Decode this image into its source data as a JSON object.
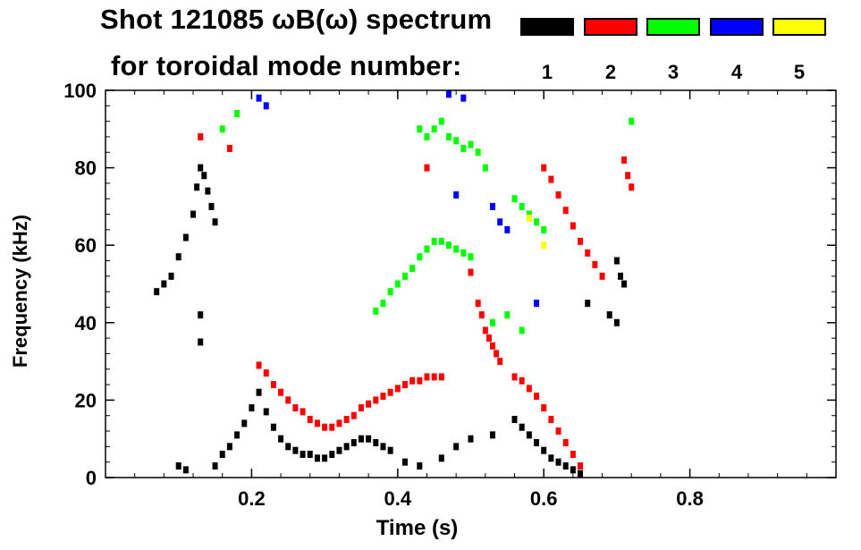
{
  "chart_data": {
    "type": "scatter",
    "title": "Shot 121085 ωB(ω) spectrum",
    "subtitle": "for toroidal mode number:",
    "xlabel": "Time (s)",
    "ylabel": "Frequency (kHz)",
    "xlim": [
      0.0,
      1.0
    ],
    "ylim": [
      0,
      100
    ],
    "xticks": [
      0.2,
      0.4,
      0.6,
      0.8
    ],
    "xtick_labels": [
      "0.2",
      "0.4",
      "0.6",
      "0.8"
    ],
    "yticks": [
      0,
      20,
      40,
      60,
      80,
      100
    ],
    "ytick_labels": [
      "0",
      "20",
      "40",
      "60",
      "80",
      "100"
    ],
    "legend": [
      {
        "label": "1",
        "color": "#000000"
      },
      {
        "label": "2",
        "color": "#ff0000"
      },
      {
        "label": "3",
        "color": "#00ff00"
      },
      {
        "label": "4",
        "color": "#0000ff"
      },
      {
        "label": "5",
        "color": "#ffff00"
      }
    ],
    "series": [
      {
        "name": "n=1",
        "color": "#000000",
        "points": [
          [
            0.07,
            48
          ],
          [
            0.08,
            50
          ],
          [
            0.09,
            52
          ],
          [
            0.1,
            57
          ],
          [
            0.11,
            62
          ],
          [
            0.12,
            68
          ],
          [
            0.125,
            75
          ],
          [
            0.13,
            80
          ],
          [
            0.135,
            78
          ],
          [
            0.14,
            74
          ],
          [
            0.145,
            70
          ],
          [
            0.15,
            66
          ],
          [
            0.13,
            42
          ],
          [
            0.13,
            35
          ],
          [
            0.1,
            3
          ],
          [
            0.11,
            2
          ],
          [
            0.15,
            3
          ],
          [
            0.16,
            6
          ],
          [
            0.17,
            8
          ],
          [
            0.18,
            11
          ],
          [
            0.19,
            14
          ],
          [
            0.2,
            18
          ],
          [
            0.21,
            22
          ],
          [
            0.22,
            17
          ],
          [
            0.23,
            13
          ],
          [
            0.24,
            10
          ],
          [
            0.25,
            8
          ],
          [
            0.26,
            7
          ],
          [
            0.27,
            6
          ],
          [
            0.28,
            6
          ],
          [
            0.29,
            5
          ],
          [
            0.3,
            5
          ],
          [
            0.31,
            6
          ],
          [
            0.32,
            7
          ],
          [
            0.33,
            8
          ],
          [
            0.34,
            9
          ],
          [
            0.35,
            10
          ],
          [
            0.36,
            10
          ],
          [
            0.37,
            9
          ],
          [
            0.38,
            8
          ],
          [
            0.39,
            7
          ],
          [
            0.41,
            4
          ],
          [
            0.43,
            3
          ],
          [
            0.46,
            5
          ],
          [
            0.48,
            8
          ],
          [
            0.5,
            10
          ],
          [
            0.53,
            11
          ],
          [
            0.56,
            15
          ],
          [
            0.57,
            13
          ],
          [
            0.58,
            11
          ],
          [
            0.59,
            9
          ],
          [
            0.6,
            7
          ],
          [
            0.61,
            5
          ],
          [
            0.62,
            4
          ],
          [
            0.63,
            3
          ],
          [
            0.64,
            2
          ],
          [
            0.65,
            1
          ],
          [
            0.7,
            56
          ],
          [
            0.705,
            52
          ],
          [
            0.71,
            50
          ],
          [
            0.69,
            42
          ],
          [
            0.66,
            45
          ],
          [
            0.7,
            40
          ]
        ]
      },
      {
        "name": "n=2",
        "color": "#ff0000",
        "points": [
          [
            0.13,
            88
          ],
          [
            0.17,
            85
          ],
          [
            0.21,
            29
          ],
          [
            0.22,
            27
          ],
          [
            0.23,
            24
          ],
          [
            0.24,
            22
          ],
          [
            0.25,
            20
          ],
          [
            0.26,
            18
          ],
          [
            0.27,
            17
          ],
          [
            0.28,
            15
          ],
          [
            0.29,
            14
          ],
          [
            0.3,
            13
          ],
          [
            0.31,
            13
          ],
          [
            0.32,
            14
          ],
          [
            0.33,
            15
          ],
          [
            0.34,
            16
          ],
          [
            0.35,
            18
          ],
          [
            0.36,
            19
          ],
          [
            0.37,
            20
          ],
          [
            0.38,
            21
          ],
          [
            0.39,
            22
          ],
          [
            0.4,
            23
          ],
          [
            0.41,
            24
          ],
          [
            0.42,
            25
          ],
          [
            0.43,
            25
          ],
          [
            0.44,
            26
          ],
          [
            0.45,
            26
          ],
          [
            0.46,
            26
          ],
          [
            0.51,
            45
          ],
          [
            0.515,
            42
          ],
          [
            0.52,
            38
          ],
          [
            0.525,
            36
          ],
          [
            0.53,
            34
          ],
          [
            0.535,
            32
          ],
          [
            0.54,
            30
          ],
          [
            0.56,
            26
          ],
          [
            0.57,
            25
          ],
          [
            0.58,
            23
          ],
          [
            0.59,
            21
          ],
          [
            0.6,
            18
          ],
          [
            0.61,
            15
          ],
          [
            0.62,
            12
          ],
          [
            0.63,
            9
          ],
          [
            0.64,
            6
          ],
          [
            0.65,
            3
          ],
          [
            0.6,
            80
          ],
          [
            0.61,
            77
          ],
          [
            0.62,
            73
          ],
          [
            0.63,
            69
          ],
          [
            0.64,
            65
          ],
          [
            0.65,
            61
          ],
          [
            0.66,
            58
          ],
          [
            0.67,
            55
          ],
          [
            0.68,
            52
          ],
          [
            0.71,
            82
          ],
          [
            0.715,
            78
          ],
          [
            0.72,
            75
          ],
          [
            0.44,
            80
          ],
          [
            0.5,
            53
          ]
        ]
      },
      {
        "name": "n=3",
        "color": "#00ff00",
        "points": [
          [
            0.37,
            43
          ],
          [
            0.38,
            45
          ],
          [
            0.39,
            48
          ],
          [
            0.4,
            50
          ],
          [
            0.41,
            52
          ],
          [
            0.42,
            54
          ],
          [
            0.43,
            57
          ],
          [
            0.44,
            59
          ],
          [
            0.45,
            61
          ],
          [
            0.46,
            61
          ],
          [
            0.47,
            60
          ],
          [
            0.48,
            59
          ],
          [
            0.49,
            58
          ],
          [
            0.5,
            57
          ],
          [
            0.43,
            90
          ],
          [
            0.44,
            88
          ],
          [
            0.45,
            90
          ],
          [
            0.46,
            92
          ],
          [
            0.47,
            88
          ],
          [
            0.48,
            87
          ],
          [
            0.49,
            85
          ],
          [
            0.5,
            86
          ],
          [
            0.51,
            84
          ],
          [
            0.52,
            80
          ],
          [
            0.56,
            72
          ],
          [
            0.57,
            70
          ],
          [
            0.58,
            68
          ],
          [
            0.59,
            66
          ],
          [
            0.6,
            64
          ],
          [
            0.53,
            40
          ],
          [
            0.55,
            42
          ],
          [
            0.57,
            38
          ],
          [
            0.18,
            94
          ],
          [
            0.16,
            90
          ],
          [
            0.72,
            92
          ]
        ]
      },
      {
        "name": "n=4",
        "color": "#0000ff",
        "points": [
          [
            0.21,
            98
          ],
          [
            0.22,
            96
          ],
          [
            0.47,
            99
          ],
          [
            0.49,
            98
          ],
          [
            0.53,
            70
          ],
          [
            0.54,
            66
          ],
          [
            0.55,
            64
          ],
          [
            0.59,
            45
          ],
          [
            0.48,
            73
          ]
        ]
      },
      {
        "name": "n=5",
        "color": "#ffff00",
        "points": [
          [
            0.58,
            67
          ],
          [
            0.6,
            60
          ]
        ]
      }
    ]
  }
}
